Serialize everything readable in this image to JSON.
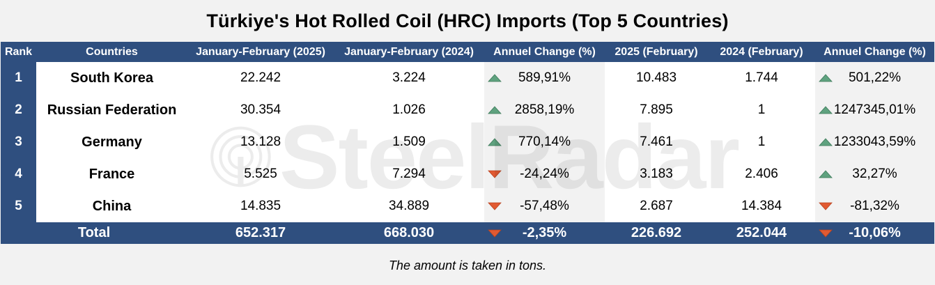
{
  "title": "Türkiye's Hot Rolled Coil (HRC) Imports (Top 5 Countries)",
  "headers": [
    "Rank",
    "Countries",
    "January-February (2025)",
    "January-February (2024)",
    "Annuel Change (%)",
    "2025 (February)",
    "2024 (February)",
    "Annuel Change (%)"
  ],
  "rows": [
    {
      "rank": "1",
      "country": "South Korea",
      "janfeb2025": "22.242",
      "janfeb2024": "3.224",
      "change1": "589,91%",
      "change1_dir": "up",
      "feb2025": "10.483",
      "feb2024": "1.744",
      "change2": "501,22%",
      "change2_dir": "up"
    },
    {
      "rank": "2",
      "country": "Russian Federation",
      "janfeb2025": "30.354",
      "janfeb2024": "1.026",
      "change1": "2858,19%",
      "change1_dir": "up",
      "feb2025": "7.895",
      "feb2024": "1",
      "change2": "1247345,01%",
      "change2_dir": "up"
    },
    {
      "rank": "3",
      "country": "Germany",
      "janfeb2025": "13.128",
      "janfeb2024": "1.509",
      "change1": "770,14%",
      "change1_dir": "up",
      "feb2025": "7.461",
      "feb2024": "1",
      "change2": "1233043,59%",
      "change2_dir": "up"
    },
    {
      "rank": "4",
      "country": "France",
      "janfeb2025": "5.525",
      "janfeb2024": "7.294",
      "change1": "-24,24%",
      "change1_dir": "down",
      "feb2025": "3.183",
      "feb2024": "2.406",
      "change2": "32,27%",
      "change2_dir": "up"
    },
    {
      "rank": "5",
      "country": "China",
      "janfeb2025": "14.835",
      "janfeb2024": "34.889",
      "change1": "-57,48%",
      "change1_dir": "down",
      "feb2025": "2.687",
      "feb2024": "14.384",
      "change2": "-81,32%",
      "change2_dir": "down"
    }
  ],
  "total": {
    "label": "Total",
    "janfeb2025": "652.317",
    "janfeb2024": "668.030",
    "change1": "-2,35%",
    "change1_dir": "down",
    "feb2025": "226.692",
    "feb2024": "252.044",
    "change2": "-10,06%",
    "change2_dir": "down"
  },
  "footnote": "The amount is taken in tons.",
  "watermark": "SteelRadar",
  "colors": {
    "header_bg": "#2f4f7f",
    "up_arrow": "#5fa27f",
    "down_arrow": "#e15a32",
    "page_bg": "#f2f2f2"
  }
}
